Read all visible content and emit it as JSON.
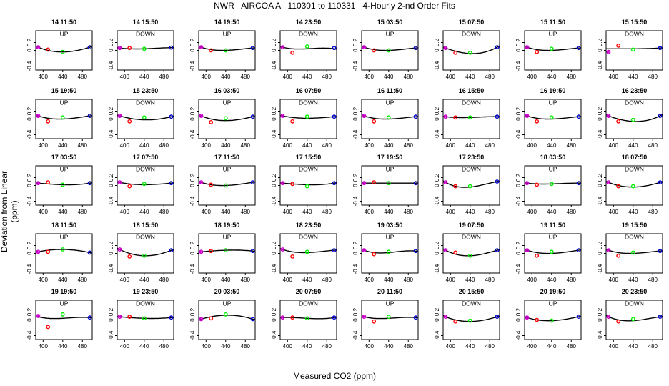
{
  "figure": {
    "title": "NWR   AIRCOA A   110301 to 110331   4-Hourly 2-nd Order Fits",
    "ylabel": "Deviation from Linear (ppm)",
    "xlabel": "Measured CO2 (ppm)"
  },
  "colors": {
    "red": "#ff0000",
    "green": "#00ee00",
    "blue": "#0000cc",
    "purple": "#cc00cc",
    "curve": "#000000"
  },
  "chart_data": {
    "type": "scatter",
    "xlim": [
      385,
      500
    ],
    "ylim": [
      -0.5,
      0.5
    ],
    "xticks": [
      400,
      440,
      480
    ],
    "yticks": [
      -0.4,
      0,
      0.2
    ],
    "ytick_labels": [
      "-0.4",
      "0",
      "0.2"
    ],
    "x_standards": [
      390,
      410,
      440,
      495
    ],
    "panels": [
      {
        "title": "14 11:50",
        "dir": "UP",
        "pts": [
          0.08,
          0.02,
          -0.04,
          0.08
        ],
        "fit": [
          0.08,
          0.0,
          -0.04,
          0.08
        ]
      },
      {
        "title": "14 15:50",
        "dir": "DOWN",
        "pts": [
          0.06,
          0.06,
          0.04,
          0.07
        ],
        "fit": [
          0.06,
          0.04,
          0.04,
          0.07
        ]
      },
      {
        "title": "14 19:50",
        "dir": "UP",
        "pts": [
          0.08,
          0.0,
          0.0,
          0.06
        ],
        "fit": [
          0.08,
          0.02,
          0.0,
          0.06
        ]
      },
      {
        "title": "14 23:50",
        "dir": "DOWN",
        "pts": [
          0.08,
          -0.06,
          0.1,
          0.06
        ],
        "fit": [
          0.08,
          0.04,
          0.04,
          0.04
        ]
      },
      {
        "title": "15 03:50",
        "dir": "UP",
        "pts": [
          0.08,
          0.0,
          0.0,
          0.06
        ],
        "fit": [
          0.08,
          0.02,
          0.0,
          0.06
        ]
      },
      {
        "title": "15 07:50",
        "dir": "DOWN",
        "pts": [
          0.06,
          -0.06,
          -0.06,
          0.08
        ],
        "fit": [
          0.06,
          -0.02,
          -0.08,
          0.08
        ]
      },
      {
        "title": "15 11:50",
        "dir": "UP",
        "pts": [
          0.08,
          -0.04,
          0.04,
          0.06
        ],
        "fit": [
          0.08,
          0.02,
          0.0,
          0.06
        ]
      },
      {
        "title": "15 15:50",
        "dir": "DOWN",
        "pts": [
          -0.04,
          0.12,
          0.02,
          0.06
        ],
        "fit": [
          0.04,
          0.04,
          0.04,
          0.06
        ]
      },
      {
        "title": "15 19:50",
        "dir": "UP",
        "pts": [
          0.08,
          -0.06,
          0.04,
          0.08
        ],
        "fit": [
          0.08,
          0.02,
          0.0,
          0.08
        ]
      },
      {
        "title": "15 23:50",
        "dir": "DOWN",
        "pts": [
          0.08,
          -0.06,
          0.04,
          0.06
        ],
        "fit": [
          0.08,
          0.02,
          -0.02,
          0.06
        ]
      },
      {
        "title": "16 03:50",
        "dir": "UP",
        "pts": [
          0.08,
          -0.08,
          0.02,
          0.06
        ],
        "fit": [
          0.08,
          0.0,
          -0.04,
          0.06
        ]
      },
      {
        "title": "16 07:50",
        "dir": "DOWN",
        "pts": [
          0.08,
          -0.06,
          0.06,
          0.06
        ],
        "fit": [
          0.08,
          0.04,
          0.02,
          0.06
        ]
      },
      {
        "title": "16 11:50",
        "dir": "UP",
        "pts": [
          0.08,
          -0.06,
          0.04,
          0.06
        ],
        "fit": [
          0.08,
          0.02,
          0.0,
          0.06
        ]
      },
      {
        "title": "16 15:50",
        "dir": "DOWN",
        "pts": [
          0.06,
          0.04,
          0.04,
          0.06
        ],
        "fit": [
          0.06,
          0.04,
          0.04,
          0.06
        ]
      },
      {
        "title": "16 19:50",
        "dir": "UP",
        "pts": [
          0.08,
          -0.06,
          0.04,
          0.06
        ],
        "fit": [
          0.08,
          0.02,
          0.0,
          0.06
        ]
      },
      {
        "title": "16 23:50",
        "dir": "DOWN",
        "pts": [
          0.08,
          -0.06,
          -0.02,
          0.08
        ],
        "fit": [
          0.08,
          0.0,
          -0.06,
          0.08
        ]
      },
      {
        "title": "17 03:50",
        "dir": "UP",
        "pts": [
          0.06,
          0.08,
          0.02,
          0.06
        ],
        "fit": [
          0.06,
          0.04,
          0.02,
          0.06
        ]
      },
      {
        "title": "17 07:50",
        "dir": "DOWN",
        "pts": [
          0.08,
          -0.02,
          0.04,
          0.06
        ],
        "fit": [
          0.08,
          0.04,
          0.02,
          0.06
        ]
      },
      {
        "title": "17 11:50",
        "dir": "UP",
        "pts": [
          0.08,
          0.02,
          0.0,
          0.08
        ],
        "fit": [
          0.08,
          0.02,
          0.0,
          0.08
        ]
      },
      {
        "title": "17 15:50",
        "dir": "DOWN",
        "pts": [
          0.06,
          0.04,
          -0.02,
          0.06
        ],
        "fit": [
          0.06,
          0.04,
          0.02,
          0.06
        ]
      },
      {
        "title": "17 19:50",
        "dir": "UP",
        "pts": [
          0.06,
          0.08,
          0.06,
          0.06
        ],
        "fit": [
          0.06,
          0.06,
          0.06,
          0.06
        ]
      },
      {
        "title": "17 23:50",
        "dir": "DOWN",
        "pts": [
          0.08,
          -0.02,
          -0.02,
          0.1
        ],
        "fit": [
          0.08,
          -0.02,
          -0.04,
          0.1
        ]
      },
      {
        "title": "18 03:50",
        "dir": "UP",
        "pts": [
          0.06,
          0.02,
          0.04,
          0.06
        ],
        "fit": [
          0.06,
          0.04,
          0.04,
          0.06
        ]
      },
      {
        "title": "18 07:50",
        "dir": "DOWN",
        "pts": [
          0.08,
          -0.02,
          -0.02,
          0.08
        ],
        "fit": [
          0.08,
          0.0,
          -0.04,
          0.08
        ]
      },
      {
        "title": "18 11:50",
        "dir": "UP",
        "pts": [
          0.04,
          0.04,
          0.1,
          0.02
        ],
        "fit": [
          0.04,
          0.08,
          0.1,
          0.02
        ]
      },
      {
        "title": "18 15:50",
        "dir": "DOWN",
        "pts": [
          0.1,
          -0.08,
          -0.06,
          0.08
        ],
        "fit": [
          0.1,
          0.0,
          -0.06,
          0.08
        ]
      },
      {
        "title": "18 19:50",
        "dir": "UP",
        "pts": [
          0.04,
          0.06,
          0.08,
          0.06
        ],
        "fit": [
          0.04,
          0.06,
          0.08,
          0.06
        ]
      },
      {
        "title": "18 23:50",
        "dir": "DOWN",
        "pts": [
          0.1,
          -0.08,
          0.04,
          0.08
        ],
        "fit": [
          0.1,
          0.04,
          0.02,
          0.08
        ]
      },
      {
        "title": "19 03:50",
        "dir": "UP",
        "pts": [
          0.08,
          -0.02,
          0.04,
          0.06
        ],
        "fit": [
          0.08,
          0.02,
          0.02,
          0.06
        ]
      },
      {
        "title": "19 07:50",
        "dir": "DOWN",
        "pts": [
          0.08,
          0.02,
          -0.06,
          0.08
        ],
        "fit": [
          0.08,
          -0.02,
          -0.06,
          0.08
        ]
      },
      {
        "title": "19 11:50",
        "dir": "UP",
        "pts": [
          0.08,
          -0.06,
          0.04,
          0.08
        ],
        "fit": [
          0.08,
          0.02,
          0.0,
          0.08
        ]
      },
      {
        "title": "19 15:50",
        "dir": "DOWN",
        "pts": [
          0.08,
          -0.06,
          0.02,
          0.06
        ],
        "fit": [
          0.08,
          0.02,
          0.0,
          0.06
        ]
      },
      {
        "title": "19 19:50",
        "dir": "UP",
        "pts": [
          0.1,
          -0.18,
          0.14,
          0.06
        ],
        "fit": [
          0.08,
          0.04,
          0.04,
          0.06
        ]
      },
      {
        "title": "19 23:50",
        "dir": "DOWN",
        "pts": [
          0.08,
          0.08,
          0.04,
          0.06
        ],
        "fit": [
          0.08,
          0.06,
          0.04,
          0.06
        ]
      },
      {
        "title": "20 03:50",
        "dir": "UP",
        "pts": [
          0.02,
          0.04,
          0.14,
          0.02
        ],
        "fit": [
          0.02,
          0.08,
          0.12,
          0.02
        ]
      },
      {
        "title": "20 07:50",
        "dir": "DOWN",
        "pts": [
          0.06,
          0.06,
          0.04,
          0.06
        ],
        "fit": [
          0.06,
          0.06,
          0.04,
          0.06
        ]
      },
      {
        "title": "20 11:50",
        "dir": "UP",
        "pts": [
          0.08,
          -0.04,
          0.08,
          0.06
        ],
        "fit": [
          0.08,
          0.04,
          0.04,
          0.06
        ]
      },
      {
        "title": "20 15:50",
        "dir": "DOWN",
        "pts": [
          0.08,
          -0.04,
          -0.02,
          0.08
        ],
        "fit": [
          0.08,
          0.0,
          -0.04,
          0.08
        ]
      },
      {
        "title": "20 19:50",
        "dir": "UP",
        "pts": [
          0.06,
          0.0,
          -0.02,
          0.08
        ],
        "fit": [
          0.06,
          0.0,
          -0.02,
          0.08
        ]
      },
      {
        "title": "20 23:50",
        "dir": "DOWN",
        "pts": [
          0.08,
          -0.04,
          0.02,
          0.08
        ],
        "fit": [
          0.08,
          0.0,
          -0.02,
          0.08
        ]
      }
    ]
  }
}
